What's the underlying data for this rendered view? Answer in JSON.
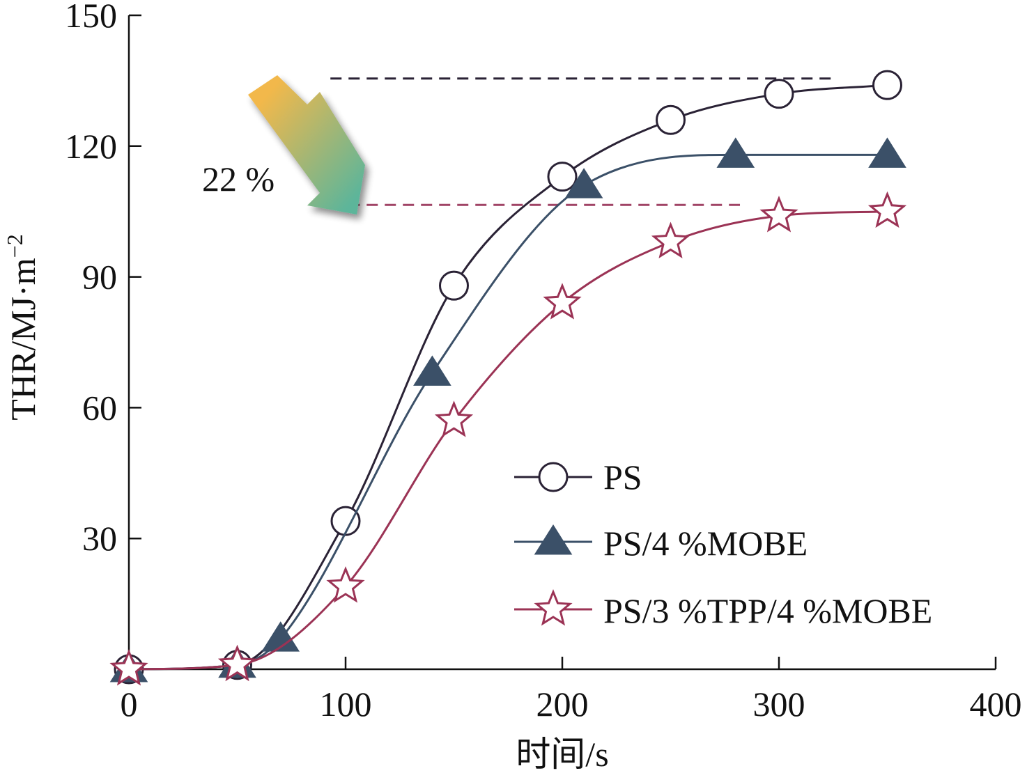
{
  "chart_data": {
    "type": "line",
    "xlabel": "时间/s",
    "ylabel": "THR/MJ·m",
    "ylabel_superscript": "−2",
    "xlim": [
      0,
      400
    ],
    "ylim": [
      0,
      150
    ],
    "xticks": [
      0,
      100,
      200,
      300,
      400
    ],
    "yticks": [
      30,
      60,
      90,
      120,
      150
    ],
    "grid": false,
    "legend_position": "bottom-right",
    "series": [
      {
        "name": "PS",
        "color": "#2a2235",
        "marker": "circle-open",
        "x": [
          0,
          50,
          100,
          150,
          200,
          250,
          300,
          350
        ],
        "y": [
          0,
          1,
          34,
          88,
          113,
          126,
          132,
          134
        ]
      },
      {
        "name": "PS/4 %MOBE",
        "color": "#3b5068",
        "marker": "triangle-filled",
        "x": [
          0,
          50,
          70,
          140,
          210,
          280,
          350
        ],
        "y": [
          0,
          1,
          7,
          68,
          111,
          118,
          118
        ]
      },
      {
        "name": "PS/3 %TPP/4 %MOBE",
        "color": "#9b3355",
        "marker": "star-open",
        "x": [
          0,
          50,
          100,
          150,
          200,
          250,
          300,
          350
        ],
        "y": [
          0,
          1,
          19,
          57,
          84,
          98,
          104,
          105
        ]
      }
    ],
    "annotations": {
      "reduction_label": "22 %",
      "ref_lines": [
        {
          "color": "#2a2235",
          "y": 135.5,
          "x_from": 93,
          "x_to": 325
        },
        {
          "color": "#a04466",
          "y": 106.5,
          "x_from": 93,
          "x_to": 282
        }
      ],
      "arrow_gradient": [
        "#f2b84b",
        "#5db59a"
      ]
    }
  }
}
